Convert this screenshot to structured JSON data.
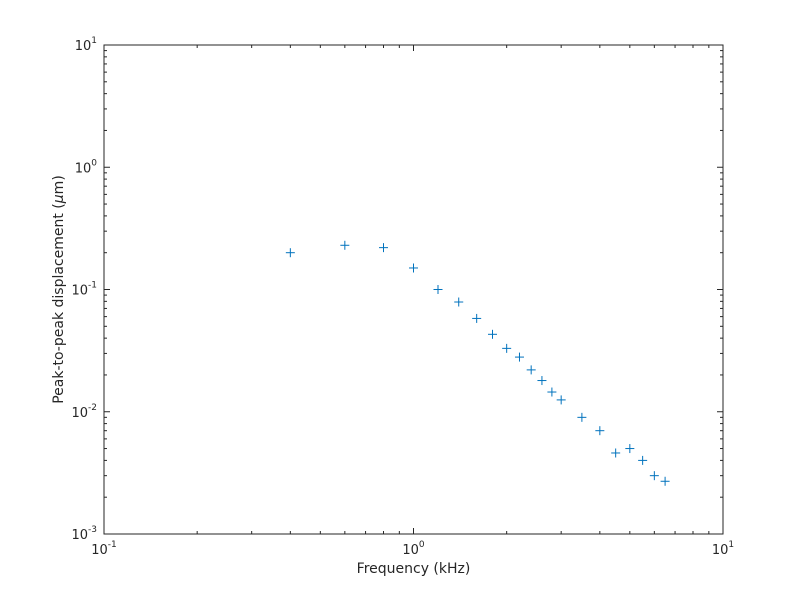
{
  "chart_data": {
    "type": "scatter",
    "title": "",
    "xlabel": "Frequency (kHz)",
    "ylabel": "Peak-to-peak displacement (",
    "ylabel_symbol": "μ",
    "ylabel_tail": "m)",
    "x_scale": "log",
    "y_scale": "log",
    "xlim": [
      0.1,
      10
    ],
    "ylim": [
      0.001,
      10
    ],
    "x_ticks": [
      {
        "base": "10",
        "exp": "-1",
        "value": 0.1
      },
      {
        "base": "10",
        "exp": "0",
        "value": 1
      },
      {
        "base": "10",
        "exp": "1",
        "value": 10
      }
    ],
    "y_ticks": [
      {
        "base": "10",
        "exp": "-3",
        "value": 0.001
      },
      {
        "base": "10",
        "exp": "-2",
        "value": 0.01
      },
      {
        "base": "10",
        "exp": "-1",
        "value": 0.1
      },
      {
        "base": "10",
        "exp": "0",
        "value": 1
      },
      {
        "base": "10",
        "exp": "1",
        "value": 10
      }
    ],
    "grid": false,
    "marker": "+",
    "marker_color": "#0072bd",
    "axis_color": "#262626",
    "series": [
      {
        "x": [
          0.4,
          0.6,
          0.8,
          1.0,
          1.2,
          1.4,
          1.6,
          1.8,
          2.0,
          2.2,
          2.4,
          2.6,
          2.8,
          3.0,
          3.5,
          4.0,
          4.5,
          5.0,
          5.5,
          6.0,
          6.5
        ],
        "y": [
          0.2,
          0.23,
          0.22,
          0.15,
          0.1,
          0.079,
          0.058,
          0.043,
          0.033,
          0.028,
          0.022,
          0.018,
          0.0145,
          0.0125,
          0.009,
          0.007,
          0.0046,
          0.005,
          0.004,
          0.003,
          0.0027
        ]
      }
    ]
  }
}
